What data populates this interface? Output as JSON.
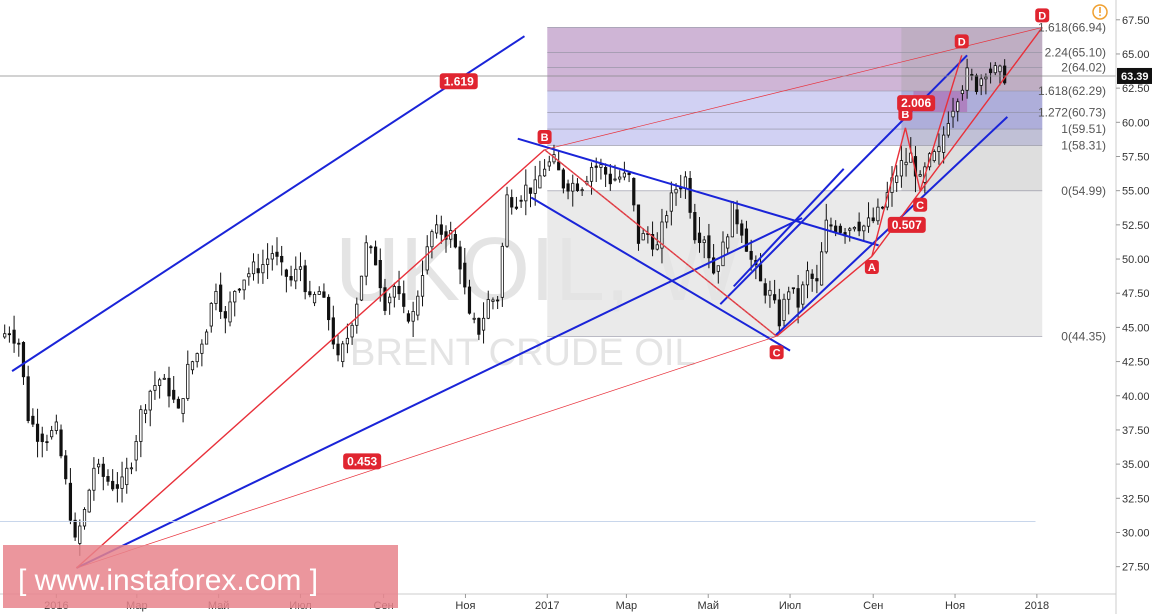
{
  "chart_data": {
    "type": "candlestick",
    "symbol_watermark": "UKOIL, W",
    "name_watermark": "BRENT CRUDE OIL",
    "xlim": [
      "2015-11-20",
      "2018-03-01"
    ],
    "ylim": [
      25.5,
      68.8
    ],
    "y_ticks": [
      "67.50",
      "65.00",
      "62.50",
      "60.00",
      "57.50",
      "55.00",
      "52.50",
      "50.00",
      "47.50",
      "45.00",
      "42.50",
      "40.00",
      "37.50",
      "35.00",
      "32.50",
      "30.00",
      "27.50"
    ],
    "x_ticks": [
      {
        "label": "2016",
        "date": "2016-01-01"
      },
      {
        "label": "Мар",
        "date": "2016-03-01"
      },
      {
        "label": "Май",
        "date": "2016-05-01"
      },
      {
        "label": "Июл",
        "date": "2016-07-01"
      },
      {
        "label": "Сен",
        "date": "2016-09-01"
      },
      {
        "label": "Ноя",
        "date": "2016-11-01"
      },
      {
        "label": "2017",
        "date": "2017-01-01"
      },
      {
        "label": "Мар",
        "date": "2017-03-01"
      },
      {
        "label": "Май",
        "date": "2017-05-01"
      },
      {
        "label": "Июл",
        "date": "2017-07-01"
      },
      {
        "label": "Сен",
        "date": "2017-09-01"
      },
      {
        "label": "Ноя",
        "date": "2017-11-01"
      },
      {
        "label": "2018",
        "date": "2018-01-01"
      }
    ],
    "current_price": "63.39",
    "price_path": [
      [
        "2015-11-20",
        44.3
      ],
      [
        "2015-11-27",
        44.8
      ],
      [
        "2015-12-04",
        43.9
      ],
      [
        "2015-12-11",
        38.5
      ],
      [
        "2015-12-18",
        37.2
      ],
      [
        "2015-12-25",
        37.0
      ],
      [
        "2016-01-01",
        37.5
      ],
      [
        "2016-01-08",
        33.6
      ],
      [
        "2016-01-15",
        29.2
      ],
      [
        "2016-01-22",
        31.5
      ],
      [
        "2016-01-29",
        34.8
      ],
      [
        "2016-02-05",
        34.1
      ],
      [
        "2016-02-12",
        33.5
      ],
      [
        "2016-02-19",
        33.5
      ],
      [
        "2016-02-26",
        35.3
      ],
      [
        "2016-03-04",
        38.7
      ],
      [
        "2016-03-11",
        40.4
      ],
      [
        "2016-03-18",
        41.2
      ],
      [
        "2016-03-25",
        40.4
      ],
      [
        "2016-04-01",
        38.7
      ],
      [
        "2016-04-08",
        41.9
      ],
      [
        "2016-04-15",
        43.1
      ],
      [
        "2016-04-22",
        45.1
      ],
      [
        "2016-04-29",
        48.1
      ],
      [
        "2016-05-06",
        45.4
      ],
      [
        "2016-05-13",
        47.8
      ],
      [
        "2016-05-20",
        48.7
      ],
      [
        "2016-05-27",
        49.3
      ],
      [
        "2016-06-03",
        49.6
      ],
      [
        "2016-06-10",
        50.5
      ],
      [
        "2016-06-17",
        49.2
      ],
      [
        "2016-06-24",
        48.4
      ],
      [
        "2016-07-01",
        49.5
      ],
      [
        "2016-07-08",
        46.8
      ],
      [
        "2016-07-15",
        47.6
      ],
      [
        "2016-07-22",
        45.7
      ],
      [
        "2016-07-29",
        42.5
      ],
      [
        "2016-08-05",
        44.3
      ],
      [
        "2016-08-12",
        47.0
      ],
      [
        "2016-08-19",
        50.9
      ],
      [
        "2016-08-26",
        49.9
      ],
      [
        "2016-09-02",
        46.8
      ],
      [
        "2016-09-09",
        48.0
      ],
      [
        "2016-09-16",
        46.0
      ],
      [
        "2016-09-23",
        45.9
      ],
      [
        "2016-09-30",
        49.2
      ],
      [
        "2016-10-07",
        51.9
      ],
      [
        "2016-10-14",
        52.0
      ],
      [
        "2016-10-21",
        51.8
      ],
      [
        "2016-10-28",
        49.7
      ],
      [
        "2016-11-04",
        45.6
      ],
      [
        "2016-11-11",
        44.8
      ],
      [
        "2016-11-18",
        46.9
      ],
      [
        "2016-11-25",
        47.2
      ],
      [
        "2016-12-02",
        54.5
      ],
      [
        "2016-12-09",
        54.3
      ],
      [
        "2016-12-16",
        55.2
      ],
      [
        "2016-12-23",
        55.2
      ],
      [
        "2016-12-30",
        56.8
      ],
      [
        "2017-01-06",
        57.1
      ],
      [
        "2017-01-13",
        55.5
      ],
      [
        "2017-01-20",
        55.5
      ],
      [
        "2017-01-27",
        55.5
      ],
      [
        "2017-02-03",
        56.8
      ],
      [
        "2017-02-10",
        56.7
      ],
      [
        "2017-02-17",
        55.8
      ],
      [
        "2017-02-24",
        56.0
      ],
      [
        "2017-03-03",
        55.9
      ],
      [
        "2017-03-10",
        51.4
      ],
      [
        "2017-03-17",
        51.8
      ],
      [
        "2017-03-24",
        50.8
      ],
      [
        "2017-03-31",
        53.5
      ],
      [
        "2017-04-07",
        55.2
      ],
      [
        "2017-04-14",
        55.9
      ],
      [
        "2017-04-21",
        51.9
      ],
      [
        "2017-04-28",
        51.7
      ],
      [
        "2017-05-05",
        49.1
      ],
      [
        "2017-05-12",
        50.8
      ],
      [
        "2017-05-19",
        53.6
      ],
      [
        "2017-05-26",
        52.2
      ],
      [
        "2017-06-02",
        49.9
      ],
      [
        "2017-06-09",
        48.2
      ],
      [
        "2017-06-16",
        47.4
      ],
      [
        "2017-06-23",
        45.5
      ],
      [
        "2017-06-30",
        47.9
      ],
      [
        "2017-07-07",
        46.7
      ],
      [
        "2017-07-14",
        48.9
      ],
      [
        "2017-07-21",
        48.1
      ],
      [
        "2017-07-28",
        52.5
      ],
      [
        "2017-08-04",
        52.4
      ],
      [
        "2017-08-11",
        52.1
      ],
      [
        "2017-08-18",
        52.7
      ],
      [
        "2017-08-25",
        52.4
      ],
      [
        "2017-09-01",
        52.8
      ],
      [
        "2017-09-08",
        53.8
      ],
      [
        "2017-09-15",
        55.6
      ],
      [
        "2017-09-22",
        56.9
      ],
      [
        "2017-09-29",
        57.5
      ],
      [
        "2017-10-06",
        55.6
      ],
      [
        "2017-10-13",
        57.2
      ],
      [
        "2017-10-20",
        57.8
      ],
      [
        "2017-10-27",
        60.4
      ],
      [
        "2017-11-03",
        62.1
      ],
      [
        "2017-11-10",
        63.5
      ],
      [
        "2017-11-17",
        62.7
      ],
      [
        "2017-11-24",
        63.9
      ],
      [
        "2017-12-01",
        63.7
      ],
      [
        "2017-12-08",
        63.4
      ]
    ],
    "fib_levels": [
      {
        "label": "1.618(66.94)",
        "value": 66.94
      },
      {
        "label": "2.24(65.10)",
        "value": 65.1
      },
      {
        "label": "2(64.02)",
        "value": 64.02
      },
      {
        "label": "1.618(62.29)",
        "value": 62.29
      },
      {
        "label": "1.272(60.73)",
        "value": 60.73
      },
      {
        "label": "1(59.51)",
        "value": 59.51
      },
      {
        "label": "1(58.31)",
        "value": 58.31
      },
      {
        "label": "0(54.99)",
        "value": 54.99
      },
      {
        "label": "0(44.35)",
        "value": 44.35
      }
    ],
    "wave_points": [
      {
        "label": "B",
        "date": "2016-12-30",
        "value": 57.9
      },
      {
        "label": "C",
        "date": "2017-06-21",
        "value": 44.35
      },
      {
        "label": "A",
        "date": "2017-08-31",
        "value": 50.0
      },
      {
        "label": "B",
        "date": "2017-09-25",
        "value": 59.6
      },
      {
        "label": "C",
        "date": "2017-10-06",
        "value": 54.99
      },
      {
        "label": "D",
        "date": "2017-11-06",
        "value": 64.9
      },
      {
        "label": "D",
        "date": "2018-01-05",
        "value": 66.94
      }
    ],
    "ratios": [
      {
        "label": "1.619",
        "date": "2016-10-27",
        "value": 63.0
      },
      {
        "label": "0.453",
        "date": "2016-08-16",
        "value": 35.2
      },
      {
        "label": "2.006",
        "date": "2017-10-03",
        "value": 61.4
      },
      {
        "label": "0.507",
        "date": "2017-09-26",
        "value": 52.5
      }
    ],
    "colors": {
      "channel": "#1a24d8",
      "wave": "#e8303a",
      "label_bg": "#e02530",
      "ext_zone": "#c7a8cf",
      "retr_zone": "#ccccf2",
      "gray_zone": "#e3e3e3",
      "price_line": "#888888"
    },
    "grid": false,
    "legend": "none"
  },
  "brand": {
    "text": "[  www.instaforex.com  ]"
  }
}
